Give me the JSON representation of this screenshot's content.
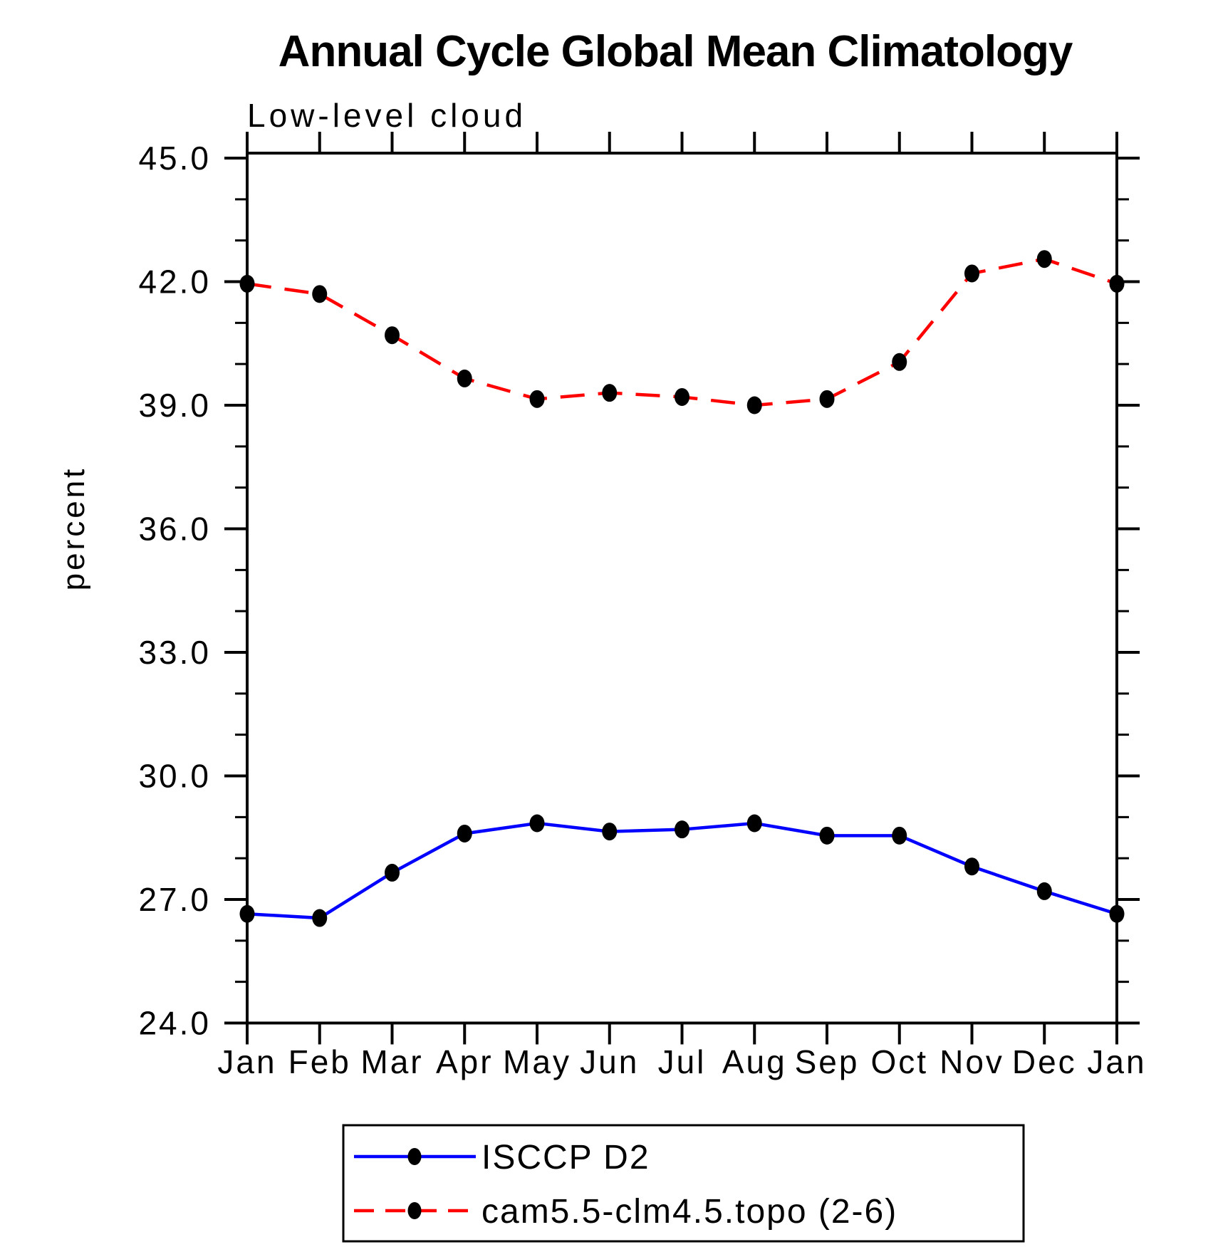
{
  "title": "Annual Cycle Global Mean Climatology",
  "chart_data": {
    "type": "line",
    "subtitle": "Low-level cloud",
    "ylabel": "percent",
    "xlabel": "",
    "categories": [
      "Jan",
      "Feb",
      "Mar",
      "Apr",
      "May",
      "Jun",
      "Jul",
      "Aug",
      "Sep",
      "Oct",
      "Nov",
      "Dec",
      "Jan"
    ],
    "ylim": [
      24.0,
      45.0
    ],
    "y_major_step": 3.0,
    "y_minor_step": 1.0,
    "y_tick_labels": [
      "24.0",
      "27.0",
      "30.0",
      "33.0",
      "36.0",
      "39.0",
      "42.0",
      "45.0"
    ],
    "grid": "off",
    "legend_position": "bottom-center-box",
    "marker": "filled-circle",
    "marker_color": "#000000",
    "frame_color": "#000000",
    "series": [
      {
        "name": "ISCCP D2",
        "color": "#0000ff",
        "style": "solid",
        "values": [
          26.65,
          26.55,
          27.65,
          28.6,
          28.85,
          28.65,
          28.7,
          28.85,
          28.55,
          28.55,
          27.8,
          27.2,
          26.65
        ]
      },
      {
        "name": "cam5.5-clm4.5.topo (2-6)",
        "color": "#ff0000",
        "style": "dashed",
        "values": [
          41.95,
          41.7,
          40.7,
          39.65,
          39.15,
          39.3,
          39.2,
          39.0,
          39.15,
          40.05,
          42.2,
          42.55,
          41.95
        ]
      }
    ]
  }
}
